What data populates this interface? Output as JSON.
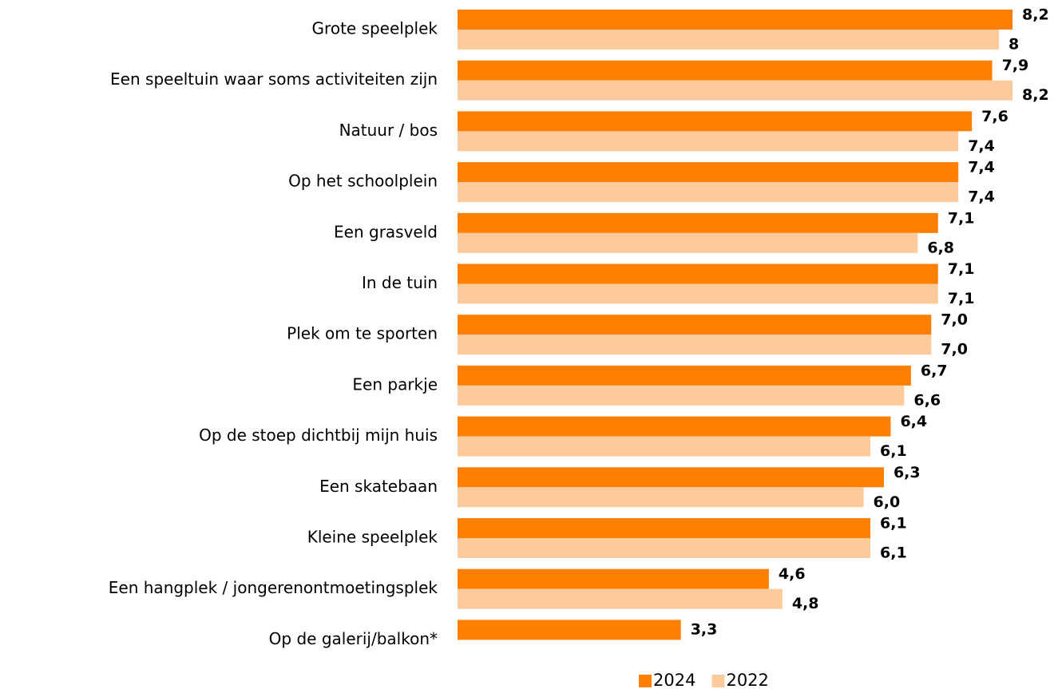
{
  "chart_data": {
    "type": "hbar",
    "categories": [
      "Grote speelplek",
      "Een speeltuin waar soms activiteiten zijn",
      "Natuur / bos",
      "Op het schoolplein",
      "Een grasveld",
      "In de tuin",
      "Plek om te sporten",
      "Een parkje",
      "Op de stoep dichtbij mijn huis",
      "Een skatebaan",
      "Kleine speelplek",
      "Een hangplek / jongerenontmoetingsplek",
      "Op de galerij/balkon*"
    ],
    "series": [
      {
        "name": "2024",
        "color": "#ff7f00",
        "values": [
          8.2,
          7.9,
          7.6,
          7.4,
          7.1,
          7.1,
          7.0,
          6.7,
          6.4,
          6.3,
          6.1,
          4.6,
          3.3
        ],
        "value_labels": [
          "8,2",
          "7,9",
          "7,6",
          "7,4",
          "7,1",
          "7,1",
          "7,0",
          "6,7",
          "6,4",
          "6,3",
          "6,1",
          "4,6",
          "3,3"
        ]
      },
      {
        "name": "2022",
        "color": "#fdca9b",
        "values": [
          8,
          8.2,
          7.4,
          7.4,
          6.8,
          7.1,
          7.0,
          6.6,
          6.1,
          6.0,
          6.1,
          4.8,
          null
        ],
        "value_labels": [
          "8",
          "8,2",
          "7,4",
          "7,4",
          "6,8",
          "7,1",
          "7,0",
          "6,6",
          "6,1",
          "6,0",
          "6,1",
          "4,8",
          null
        ]
      }
    ],
    "legend": "bottom"
  }
}
